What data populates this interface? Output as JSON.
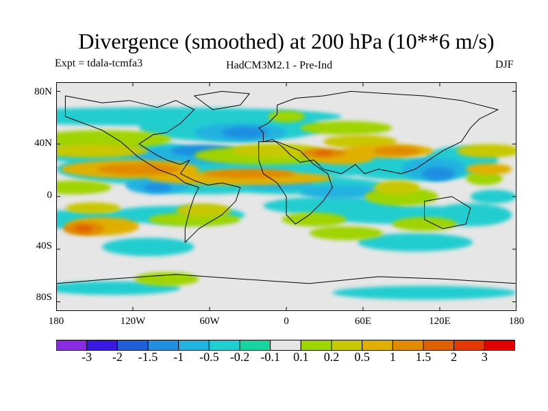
{
  "title": "Divergence (smoothed) at 200 hPa (10**6 m/s)",
  "subtitle_left": "Expt = tdala-tcmfa3",
  "subtitle_center": "HadCM3M2.1 - Pre-Ind",
  "subtitle_right": "DJF",
  "lat_labels": [
    "80N",
    "40N",
    "0",
    "40S",
    "80S"
  ],
  "lon_labels": [
    "180",
    "120W",
    "60W",
    "0",
    "60E",
    "120E",
    "180"
  ],
  "colorbar": {
    "labels": [
      "-3",
      "-2",
      "-1.5",
      "-1",
      "-0.5",
      "-0.2",
      "-0.1",
      "0.1",
      "0.2",
      "0.5",
      "1",
      "1.5",
      "2",
      "3"
    ],
    "colors": [
      "#8a2be2",
      "#3a19e0",
      "#1f5fd8",
      "#1f8fe0",
      "#21b2e0",
      "#20cdd0",
      "#16d3a0",
      "#e6e6e6",
      "#9fd400",
      "#c8c800",
      "#e0b000",
      "#e08a00",
      "#e06000",
      "#e03a00",
      "#e00000"
    ]
  },
  "map": {
    "background": "#e6e6e6",
    "field": [
      {
        "c": "#20cdd0",
        "blobs": [
          [
            22,
            15,
            80,
            8
          ],
          [
            38,
            20,
            40,
            12
          ],
          [
            10,
            30,
            40,
            10
          ],
          [
            25,
            38,
            50,
            14
          ],
          [
            60,
            36,
            40,
            10
          ],
          [
            33,
            44,
            30,
            10
          ],
          [
            52,
            45,
            38,
            8
          ],
          [
            78,
            38,
            30,
            10
          ],
          [
            88,
            34,
            16,
            12
          ],
          [
            4,
            60,
            30,
            8
          ],
          [
            26,
            58,
            30,
            8
          ],
          [
            60,
            54,
            30,
            8
          ],
          [
            76,
            58,
            40,
            8
          ],
          [
            90,
            58,
            18,
            10
          ],
          [
            20,
            72,
            20,
            8
          ],
          [
            78,
            70,
            25,
            8
          ],
          [
            12,
            90,
            30,
            6
          ],
          [
            80,
            92,
            40,
            6
          ],
          [
            95,
            50,
            10,
            6
          ]
        ]
      },
      {
        "c": "#21b2e0",
        "blobs": [
          [
            30,
            32,
            30,
            8
          ],
          [
            40,
            22,
            20,
            8
          ],
          [
            82,
            38,
            14,
            10
          ],
          [
            22,
            45,
            14,
            8
          ],
          [
            62,
            48,
            18,
            6
          ],
          [
            48,
            44,
            16,
            6
          ]
        ]
      },
      {
        "c": "#1f8fe0",
        "blobs": [
          [
            32,
            30,
            14,
            5
          ],
          [
            83,
            40,
            7,
            6
          ],
          [
            22,
            46,
            6,
            4
          ],
          [
            41,
            22,
            10,
            5
          ]
        ]
      },
      {
        "c": "#9fd400",
        "blobs": [
          [
            10,
            25,
            30,
            8
          ],
          [
            45,
            32,
            30,
            8
          ],
          [
            63,
            20,
            20,
            6
          ],
          [
            30,
            60,
            20,
            6
          ],
          [
            56,
            60,
            14,
            6
          ],
          [
            75,
            50,
            16,
            8
          ],
          [
            4,
            46,
            16,
            6
          ],
          [
            24,
            86,
            14,
            6
          ],
          [
            93,
            42,
            8,
            6
          ],
          [
            50,
            15,
            8,
            5
          ],
          [
            63,
            66,
            16,
            6
          ],
          [
            80,
            62,
            14,
            6
          ]
        ]
      },
      {
        "c": "#c8c800",
        "blobs": [
          [
            8,
            30,
            24,
            6
          ],
          [
            48,
            30,
            20,
            6
          ],
          [
            66,
            26,
            16,
            6
          ],
          [
            32,
            56,
            12,
            6
          ],
          [
            74,
            46,
            10,
            6
          ],
          [
            94,
            30,
            14,
            6
          ],
          [
            8,
            55,
            12,
            5
          ]
        ]
      },
      {
        "c": "#e0b000",
        "blobs": [
          [
            16,
            38,
            30,
            8
          ],
          [
            40,
            42,
            40,
            6
          ],
          [
            62,
            33,
            14,
            6
          ],
          [
            72,
            30,
            20,
            6
          ],
          [
            10,
            63,
            16,
            8
          ],
          [
            94,
            38,
            10,
            5
          ]
        ]
      },
      {
        "c": "#e08a00",
        "blobs": [
          [
            18,
            38,
            18,
            5
          ],
          [
            42,
            40,
            20,
            4
          ],
          [
            58,
            31,
            10,
            4
          ],
          [
            74,
            30,
            10,
            4
          ],
          [
            6,
            64,
            9,
            6
          ]
        ]
      },
      {
        "c": "#e06000",
        "blobs": [
          [
            6,
            64,
            4,
            3
          ],
          [
            58,
            31,
            4,
            2
          ]
        ]
      }
    ],
    "coast": [
      [
        [
          2,
          6
        ],
        [
          10,
          9
        ],
        [
          16,
          8
        ],
        [
          22,
          11
        ],
        [
          26,
          8
        ],
        [
          30,
          12
        ],
        [
          27,
          18
        ],
        [
          24,
          22
        ],
        [
          21,
          23
        ],
        [
          18,
          27
        ],
        [
          22,
          32
        ],
        [
          24,
          34
        ],
        [
          27,
          36
        ],
        [
          29,
          34
        ],
        [
          27,
          40
        ],
        [
          30,
          43
        ],
        [
          33,
          45
        ],
        [
          36,
          44
        ],
        [
          40,
          46
        ],
        [
          39,
          52
        ],
        [
          36,
          58
        ],
        [
          31,
          64
        ],
        [
          28,
          70
        ],
        [
          28,
          64
        ],
        [
          29,
          56
        ],
        [
          30,
          50
        ],
        [
          31,
          46
        ],
        [
          28,
          44
        ],
        [
          26,
          41
        ],
        [
          22,
          38
        ],
        [
          18,
          33
        ],
        [
          14,
          26
        ],
        [
          10,
          21
        ],
        [
          6,
          18
        ],
        [
          2,
          15
        ]
      ],
      [
        [
          48,
          10
        ],
        [
          52,
          7
        ],
        [
          58,
          6
        ],
        [
          64,
          4
        ],
        [
          72,
          5
        ],
        [
          80,
          6
        ],
        [
          88,
          8
        ],
        [
          96,
          12
        ],
        [
          92,
          16
        ],
        [
          90,
          20
        ],
        [
          88,
          26
        ],
        [
          84,
          30
        ],
        [
          81,
          34
        ],
        [
          78,
          38
        ],
        [
          75,
          40
        ],
        [
          70,
          38
        ],
        [
          67,
          40
        ],
        [
          65,
          36
        ],
        [
          62,
          40
        ],
        [
          58,
          38
        ],
        [
          56,
          34
        ],
        [
          53,
          35
        ],
        [
          51,
          32
        ],
        [
          49,
          28
        ],
        [
          47,
          25
        ],
        [
          45,
          26
        ],
        [
          45,
          22
        ],
        [
          44,
          20
        ],
        [
          46,
          18
        ],
        [
          48,
          14
        ]
      ],
      [
        [
          44,
          26
        ],
        [
          48,
          26
        ],
        [
          53,
          30
        ],
        [
          56,
          36
        ],
        [
          59,
          40
        ],
        [
          60,
          46
        ],
        [
          58,
          52
        ],
        [
          55,
          58
        ],
        [
          52,
          62
        ],
        [
          50,
          58
        ],
        [
          50,
          50
        ],
        [
          48,
          44
        ],
        [
          45,
          40
        ],
        [
          44,
          34
        ]
      ],
      [
        [
          80,
          52
        ],
        [
          86,
          50
        ],
        [
          90,
          55
        ],
        [
          89,
          62
        ],
        [
          84,
          64
        ],
        [
          80,
          60
        ]
      ],
      [
        [
          30,
          6
        ],
        [
          36,
          4
        ],
        [
          42,
          5
        ],
        [
          40,
          10
        ],
        [
          34,
          12
        ]
      ],
      [
        [
          0,
          88
        ],
        [
          12,
          86
        ],
        [
          26,
          84
        ],
        [
          40,
          86
        ],
        [
          55,
          88
        ],
        [
          70,
          85
        ],
        [
          84,
          86
        ],
        [
          100,
          88
        ]
      ]
    ]
  }
}
